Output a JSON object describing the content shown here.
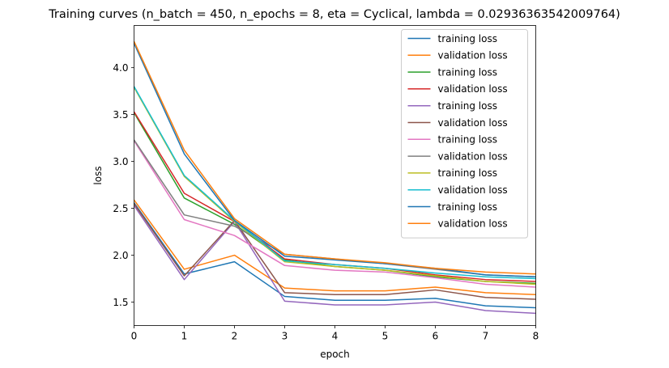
{
  "chart_data": {
    "type": "line",
    "title": "Training curves (n_batch = 450, n_epochs = 8, eta = Cyclical, lambda = 0.02936363542009764)",
    "xlabel": "epoch",
    "ylabel": "loss",
    "xlim": [
      0,
      8
    ],
    "ylim": [
      1.25,
      4.45
    ],
    "xticks": [
      0,
      1,
      2,
      3,
      4,
      5,
      6,
      7,
      8
    ],
    "yticks": [
      1.5,
      2.0,
      2.5,
      3.0,
      3.5,
      4.0
    ],
    "grid": false,
    "legend_position": "top-right",
    "x": [
      0,
      1,
      2,
      3,
      4,
      5,
      6,
      7,
      8
    ],
    "series": [
      {
        "name": "training loss",
        "color": "#1f77b4",
        "values": [
          2.56,
          1.8,
          1.93,
          1.56,
          1.52,
          1.52,
          1.54,
          1.46,
          1.44
        ]
      },
      {
        "name": "validation loss",
        "color": "#ff7f0e",
        "values": [
          2.59,
          1.85,
          2.0,
          1.65,
          1.62,
          1.62,
          1.66,
          1.6,
          1.58
        ]
      },
      {
        "name": "training loss",
        "color": "#2ca02c",
        "values": [
          3.52,
          2.61,
          2.33,
          1.95,
          1.88,
          1.84,
          1.77,
          1.72,
          1.7
        ]
      },
      {
        "name": "validation loss",
        "color": "#d62728",
        "values": [
          3.53,
          2.66,
          2.36,
          1.96,
          1.9,
          1.86,
          1.79,
          1.74,
          1.72
        ]
      },
      {
        "name": "training loss",
        "color": "#9467bd",
        "values": [
          2.53,
          1.74,
          2.36,
          1.51,
          1.47,
          1.47,
          1.5,
          1.41,
          1.38
        ]
      },
      {
        "name": "validation loss",
        "color": "#8c564b",
        "values": [
          2.55,
          1.78,
          2.37,
          1.6,
          1.58,
          1.58,
          1.63,
          1.55,
          1.53
        ]
      },
      {
        "name": "training loss",
        "color": "#e377c2",
        "values": [
          3.22,
          2.38,
          2.21,
          1.89,
          1.84,
          1.82,
          1.76,
          1.69,
          1.66
        ]
      },
      {
        "name": "validation loss",
        "color": "#7f7f7f",
        "values": [
          3.23,
          2.43,
          2.31,
          2.01,
          1.96,
          1.91,
          1.85,
          1.79,
          1.77
        ]
      },
      {
        "name": "training loss",
        "color": "#bcbd22",
        "values": [
          3.79,
          2.84,
          2.36,
          1.93,
          1.88,
          1.84,
          1.78,
          1.72,
          1.69
        ]
      },
      {
        "name": "validation loss",
        "color": "#17becf",
        "values": [
          3.8,
          2.85,
          2.37,
          1.94,
          1.9,
          1.86,
          1.81,
          1.77,
          1.75
        ]
      },
      {
        "name": "training loss",
        "color": "#1f77b4",
        "values": [
          4.26,
          3.08,
          2.37,
          1.99,
          1.95,
          1.91,
          1.86,
          1.79,
          1.77
        ]
      },
      {
        "name": "validation loss",
        "color": "#ff7f0e",
        "values": [
          4.28,
          3.12,
          2.39,
          2.01,
          1.96,
          1.92,
          1.86,
          1.82,
          1.8
        ]
      }
    ]
  }
}
